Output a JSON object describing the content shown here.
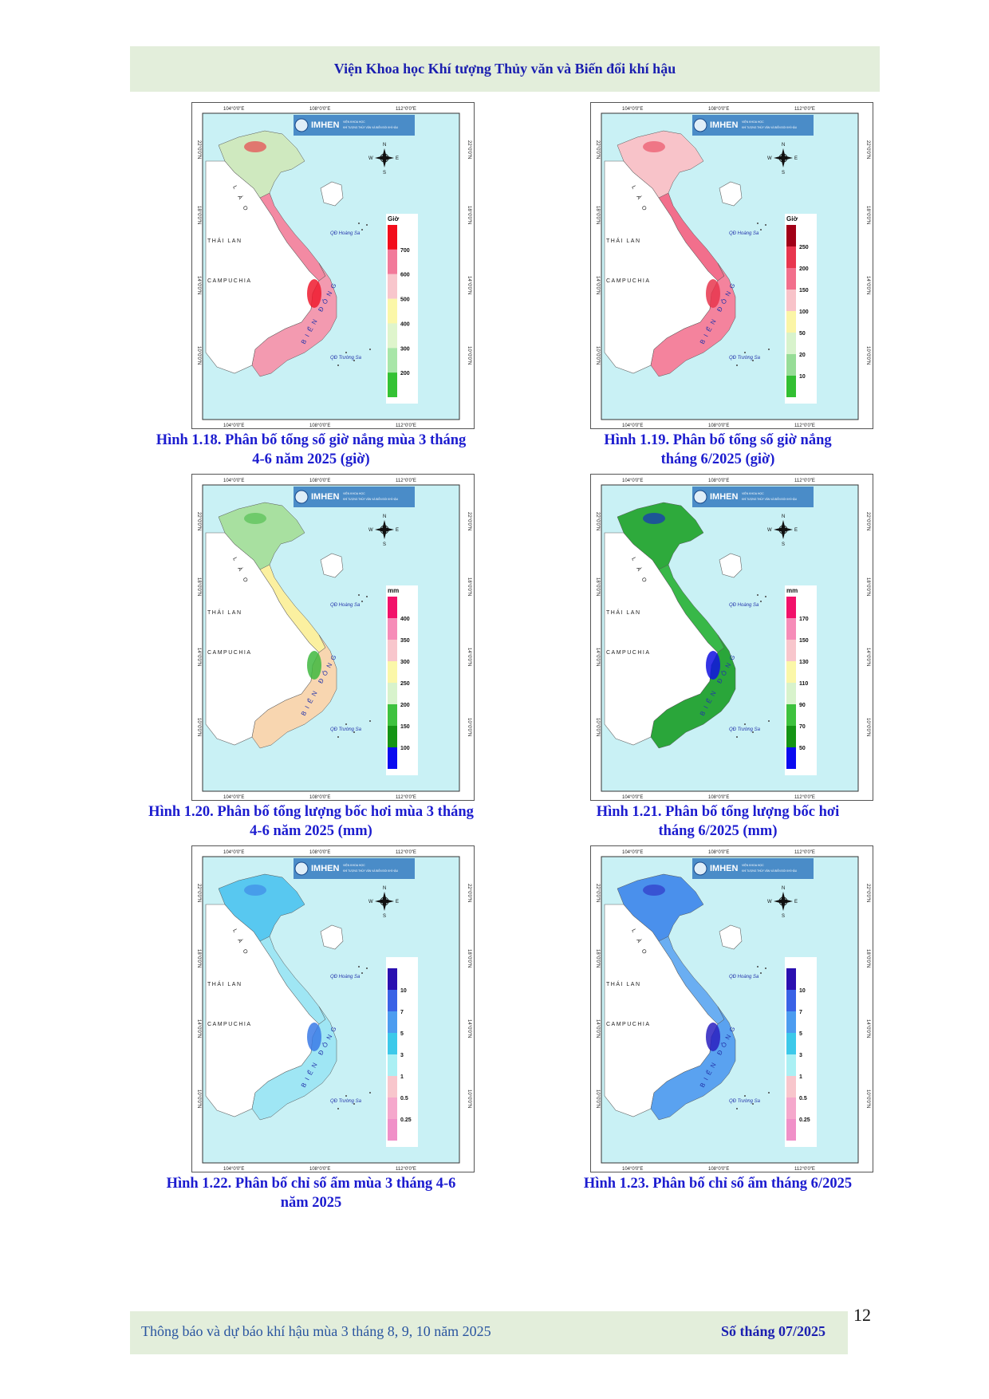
{
  "header": {
    "title": "Viện Khoa học Khí tượng Thủy văn và Biến đổi khí hậu"
  },
  "map_common": {
    "top_lon_labels": [
      "104°0'0\"E",
      "108°0'0\"E",
      "112°0'0\"E"
    ],
    "bottom_lon_labels": [
      "104°0'0\"E",
      "108°0'0\"E",
      "112°0'0\"E"
    ],
    "lat_labels": [
      "22°0'0\"N",
      "18°0'0\"N",
      "14°0'0\"N",
      "10°0'0\"N"
    ],
    "logo_text": "IMHEN",
    "logo_sub1": "VIỆN KHOA HỌC",
    "logo_sub2": "KHÍ TƯỢNG THỦY VĂN VÀ BIẾN ĐỔI KHÍ HẬU",
    "compass": {
      "n": "N",
      "s": "S",
      "e": "E",
      "w": "W"
    },
    "place_labels": {
      "lao": "L À O",
      "thailan": "THÁI LAN",
      "campuchia": "CAMPUCHIA",
      "hoangsa": "QĐ Hoàng Sa",
      "truongsa": "QĐ Trường Sa",
      "biendong": "BIỂN ĐÔNG"
    }
  },
  "figures": [
    {
      "id": "1.18",
      "caption_l1": "Hình 1.18. Phân bố tổng số giờ nắng mùa 3 tháng",
      "caption_l2": "4-6 năm 2025 (giờ)",
      "unit": "Giờ",
      "legend": [
        "700",
        "600",
        "500",
        "400",
        "300",
        "200"
      ],
      "colors": [
        "#f20d1b",
        "#f27a9a",
        "#f8c6cc",
        "#fbf7a8",
        "#dff5cc",
        "#a8e6a8",
        "#34c234"
      ],
      "north": "#cfe9bf",
      "center": "#f38aa3",
      "south": "#f39ab0",
      "hot": "#ee1a2e"
    },
    {
      "id": "1.19",
      "caption_l1": "Hình 1.19. Phân bố tổng số giờ nắng",
      "caption_l2": "tháng 6/2025 (giờ)",
      "unit": "Giờ",
      "legend": [
        "250",
        "200",
        "150",
        "100",
        "50",
        "20",
        "10"
      ],
      "colors": [
        "#a10017",
        "#e8364e",
        "#f26f8c",
        "#f8c3c9",
        "#fbf5a6",
        "#d8f3cc",
        "#97dd97",
        "#32bf32"
      ],
      "north": "#f8c3c9",
      "center": "#f26f8c",
      "south": "#f4839d",
      "hot": "#e8364e"
    },
    {
      "id": "1.20",
      "caption_l1": "Hình 1.20. Phân bố tổng lượng bốc hơi mùa 3 tháng",
      "caption_l2": "4-6 năm 2025 (mm)",
      "unit": "mm",
      "legend": [
        "400",
        "350",
        "300",
        "250",
        "200",
        "150",
        "100"
      ],
      "colors": [
        "#f2116a",
        "#f68cb8",
        "#f8c6cc",
        "#fbf7a8",
        "#d8f3cc",
        "#3ec23e",
        "#149414",
        "#0a0af0"
      ],
      "north": "#a8e0a0",
      "center": "#fbf0a0",
      "south": "#f8d6b0",
      "hot": "#40b840"
    },
    {
      "id": "1.21",
      "caption_l1": "Hình 1.21. Phân bố tổng lượng bốc hơi",
      "caption_l2": "tháng 6/2025 (mm)",
      "unit": "mm",
      "legend": [
        "170",
        "150",
        "130",
        "110",
        "90",
        "70",
        "50"
      ],
      "colors": [
        "#f2116a",
        "#f68cb8",
        "#f8c6cc",
        "#fbf7a8",
        "#d8f3cc",
        "#3ec23e",
        "#149414",
        "#0a0af0"
      ],
      "north": "#2eaa3c",
      "center": "#38b848",
      "south": "#2aa63a",
      "hot": "#1010e0"
    },
    {
      "id": "1.22",
      "caption_l1": "Hình 1.22. Phân bố chỉ số ẩm mùa 3 tháng 4-6",
      "caption_l2": "năm 2025",
      "unit": "",
      "legend": [
        "10",
        "7",
        "5",
        "3",
        "1",
        "0.5",
        "0.25"
      ],
      "colors": [
        "#2a10b0",
        "#3a62e6",
        "#4c9cf0",
        "#3cc9ea",
        "#aaf0f4",
        "#f8c6cc",
        "#f5a8cc",
        "#f090c8"
      ],
      "north": "#58c8f0",
      "center": "#9fe6f4",
      "south": "#9fe6f4",
      "hot": "#3a7ae6"
    },
    {
      "id": "1.23",
      "caption_l1": "Hình 1.23. Phân bố chỉ số ẩm tháng 6/2025",
      "caption_l2": "",
      "unit": "",
      "legend": [
        "10",
        "7",
        "5",
        "3",
        "1",
        "0.5",
        "0.25"
      ],
      "colors": [
        "#2a10b0",
        "#3a62e6",
        "#4c9cf0",
        "#3cc9ea",
        "#aaf0f4",
        "#f8c6cc",
        "#f5a8cc",
        "#f090c8"
      ],
      "north": "#4a90ec",
      "center": "#6aaef2",
      "south": "#5aa2f0",
      "hot": "#2a20c0"
    }
  ],
  "footer": {
    "left": "Thông báo và dự báo khí hậu mùa 3 tháng 8, 9, 10 năm 2025",
    "right": "Số tháng 07/2025",
    "page": "12"
  }
}
